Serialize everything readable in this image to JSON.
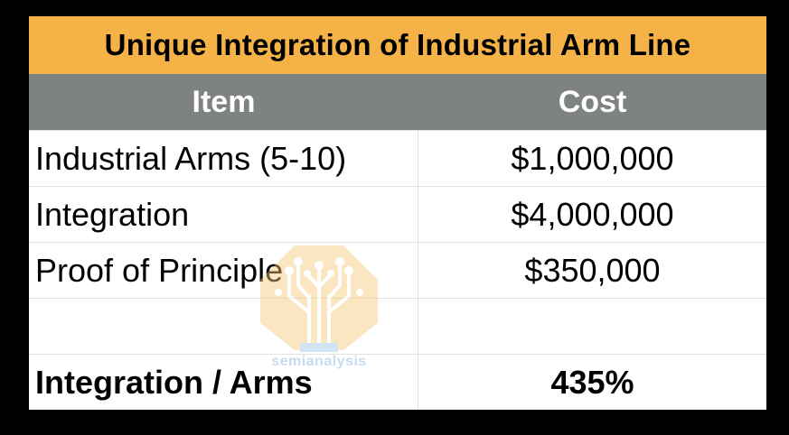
{
  "table": {
    "title": "Unique Integration of Industrial Arm Line",
    "headers": {
      "item": "Item",
      "cost": "Cost"
    },
    "rows": [
      {
        "item": "Industrial Arms (5-10)",
        "cost": "$1,000,000"
      },
      {
        "item": "Integration",
        "cost": "$4,000,000"
      },
      {
        "item": "Proof of Principle",
        "cost": "$350,000"
      },
      {
        "item": "",
        "cost": ""
      }
    ],
    "total": {
      "item": "Integration / Arms",
      "cost": "435%"
    }
  },
  "watermark": {
    "text": "semianalysis"
  },
  "colors": {
    "title_bg": "#f4b247",
    "header_bg": "#7f8282",
    "background": "#000000"
  }
}
